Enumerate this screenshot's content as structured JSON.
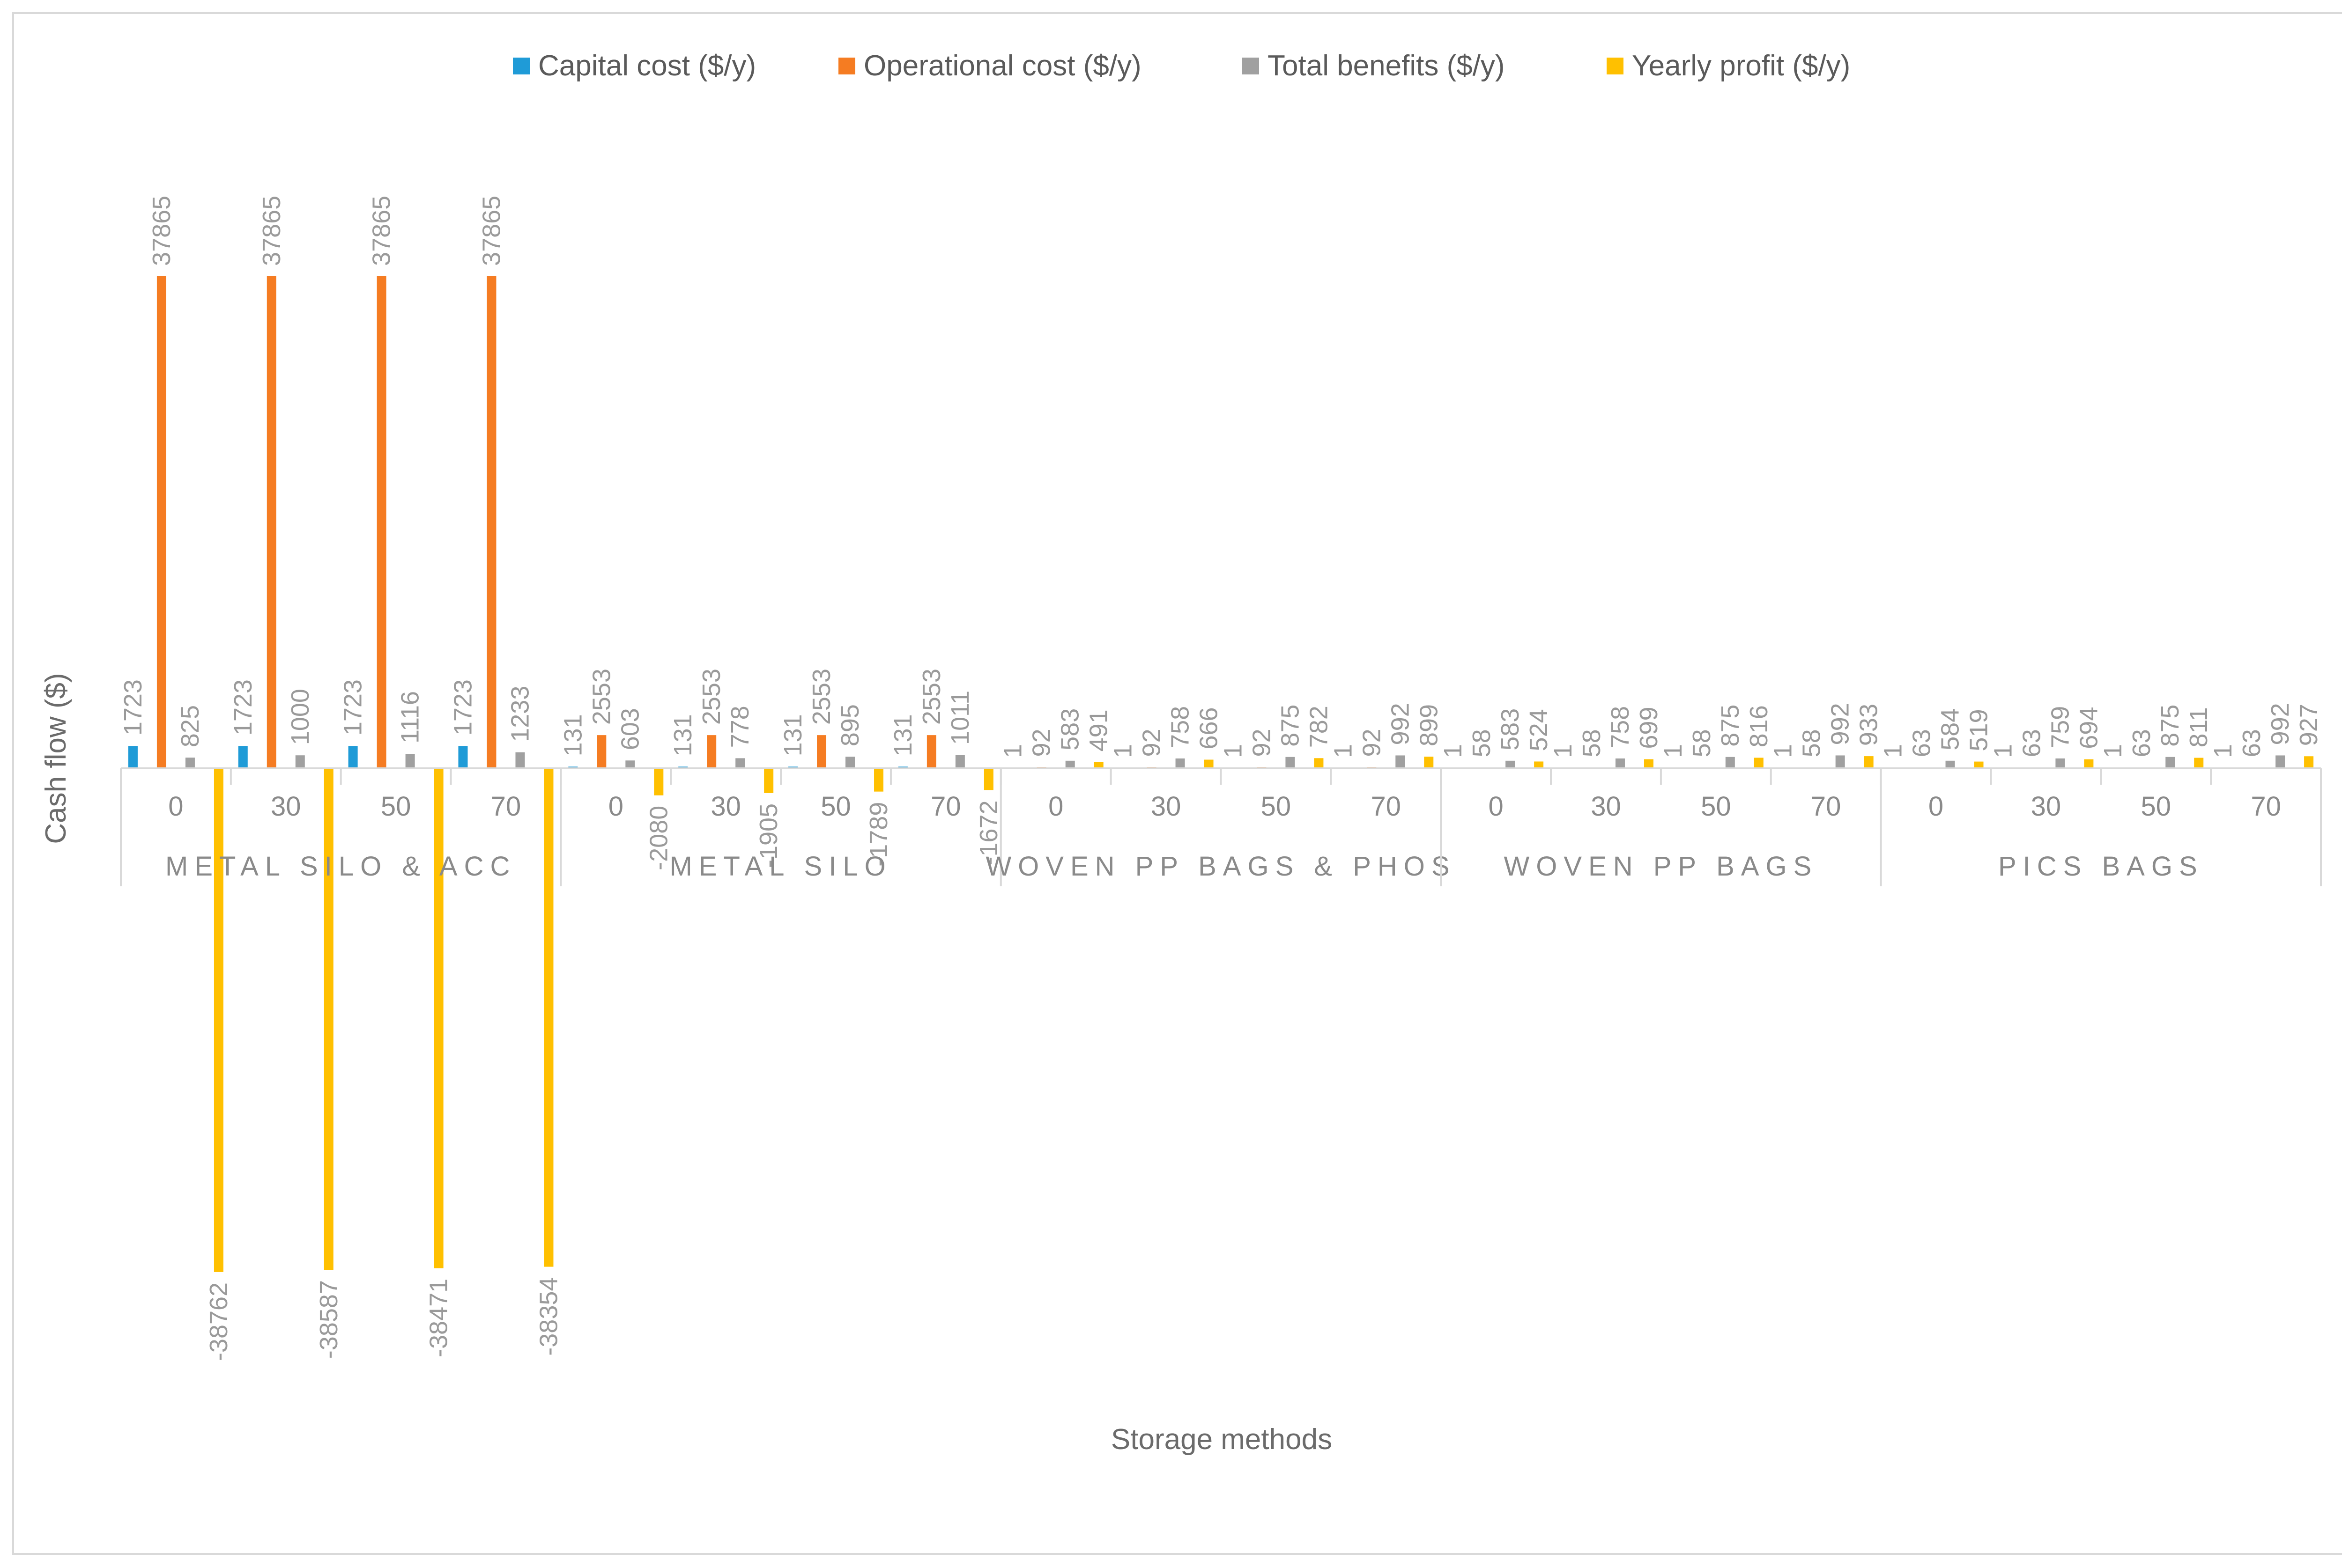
{
  "chart_data": {
    "type": "bar",
    "xlabel": "Storage methods",
    "ylabel": "Cash flow ($)",
    "legend_position": "top",
    "groups": [
      {
        "name": "METAL SILO & ACC",
        "categories": [
          "0",
          "30",
          "50",
          "70"
        ]
      },
      {
        "name": "METAL SILO",
        "categories": [
          "0",
          "30",
          "50",
          "70"
        ]
      },
      {
        "name": "WOVEN PP BAGS & PHOS",
        "categories": [
          "0",
          "30",
          "50",
          "70"
        ]
      },
      {
        "name": "WOVEN PP BAGS",
        "categories": [
          "0",
          "30",
          "50",
          "70"
        ]
      },
      {
        "name": "PICS BAGS",
        "categories": [
          "0",
          "30",
          "50",
          "70"
        ]
      }
    ],
    "series": [
      {
        "name": "Capital cost ($/y)",
        "color": "#1f9bd7",
        "values": [
          1723,
          1723,
          1723,
          1723,
          131,
          131,
          131,
          131,
          1,
          1,
          1,
          1,
          1,
          1,
          1,
          1,
          1,
          1,
          1,
          1
        ]
      },
      {
        "name": "Operational cost ($/y)",
        "color": "#f57c22",
        "values": [
          37865,
          37865,
          37865,
          37865,
          2553,
          2553,
          2553,
          2553,
          92,
          92,
          92,
          92,
          58,
          58,
          58,
          58,
          63,
          63,
          63,
          63
        ]
      },
      {
        "name": "Total benefits ($/y)",
        "color": "#a0a0a0",
        "values": [
          825,
          1000,
          1116,
          1233,
          603,
          778,
          895,
          1011,
          583,
          758,
          875,
          992,
          583,
          758,
          875,
          992,
          584,
          759,
          875,
          992
        ]
      },
      {
        "name": "Yearly profit ($/y)",
        "color": "#ffc000",
        "values": [
          -38762,
          -38587,
          -38471,
          -38354,
          -2080,
          -1905,
          -1789,
          -1672,
          491,
          666,
          782,
          899,
          524,
          699,
          816,
          933,
          519,
          694,
          811,
          927
        ]
      }
    ]
  }
}
